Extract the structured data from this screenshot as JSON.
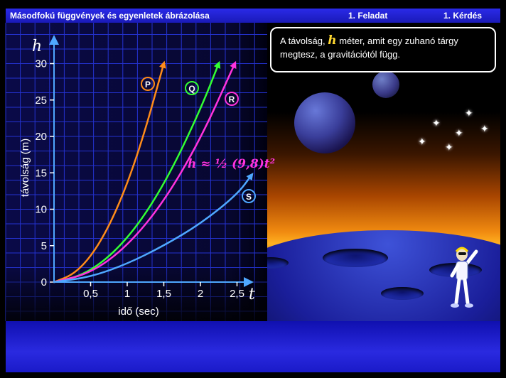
{
  "header": {
    "title": "Másodfokú függvények és egyenletek ábrázolása",
    "task": "1. Feladat",
    "question": "1. Kérdés"
  },
  "info": {
    "text_before": "A távolság,",
    "variable": "h",
    "text_after": " méter, amit egy zuhanó tárgy megtesz, a gravitációtól függ."
  },
  "colors": {
    "P": "#ff8c1a",
    "Q": "#33ff33",
    "R": "#ff33dd",
    "S": "#4fa8ff",
    "axis": "#ffffff",
    "grid": "#2432d0",
    "background": "#0a0a40",
    "formula": "#ff33dd"
  },
  "icons": {
    "astronaut": "astronaut-figure-icon",
    "planet": "planet-icon",
    "star": "star-icon"
  },
  "chart_data": {
    "type": "line",
    "xlabel": "idő (sec)",
    "ylabel": "távolság (m)",
    "x_var": "t",
    "y_var": "h",
    "xlim": [
      0,
      2.6
    ],
    "ylim": [
      0,
      31
    ],
    "x_ticks": [
      0.5,
      1,
      1.5,
      2,
      2.5
    ],
    "x_tick_labels": [
      "0,5",
      "1",
      "1,5",
      "2",
      "2,5"
    ],
    "y_ticks": [
      0,
      5,
      10,
      15,
      20,
      25,
      30
    ],
    "y_tick_labels": [
      "0",
      "5",
      "10",
      "15",
      "20",
      "25",
      "30"
    ],
    "grid": true,
    "annotation": "h ≈ ½ (9,8)t²",
    "series": [
      {
        "name": "P",
        "x": [
          0,
          0.3,
          0.6,
          0.9,
          1.2,
          1.5
        ],
        "y": [
          0,
          1.2,
          4.8,
          10.8,
          19.2,
          30
        ]
      },
      {
        "name": "Q",
        "x": [
          0,
          0.4,
          0.8,
          1.2,
          1.6,
          2.0,
          2.25
        ],
        "y": [
          0,
          0.95,
          3.8,
          8.5,
          15.2,
          23.7,
          30
        ]
      },
      {
        "name": "R",
        "x": [
          0,
          0.5,
          1.0,
          1.5,
          2.0,
          2.47
        ],
        "y": [
          0,
          1.2,
          4.9,
          11.0,
          19.6,
          30
        ]
      },
      {
        "name": "S",
        "x": [
          0,
          0.5,
          1.0,
          1.5,
          2.0,
          2.5,
          2.7
        ],
        "y": [
          0,
          0.7,
          2.5,
          5.0,
          8.0,
          12.0,
          14.7
        ]
      }
    ]
  }
}
